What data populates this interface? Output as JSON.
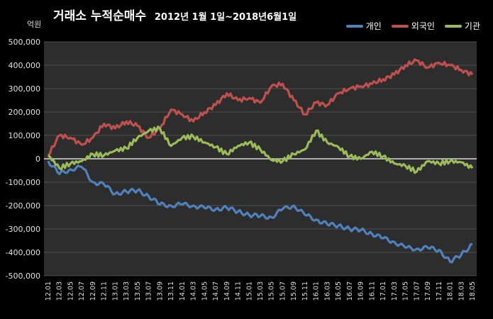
{
  "chart_data": {
    "type": "line",
    "title": "거래소 누적순매수",
    "subtitle": "2012년 1월 1일~2018년6월1일",
    "ylabel": "억원",
    "ylim": [
      -500000,
      500000
    ],
    "yticks": [
      500000,
      400000,
      300000,
      200000,
      100000,
      0,
      -100000,
      -200000,
      -300000,
      -400000,
      -500000
    ],
    "ytick_labels": [
      "500,000",
      "400,000",
      "300,000",
      "200,000",
      "100,000",
      "0",
      "-100,000",
      "-200,000",
      "-300,000",
      "-400,000",
      "-500,000"
    ],
    "x_tick_labels": [
      "12.01",
      "12.03",
      "12.05",
      "12.07",
      "12.09",
      "12.11",
      "13.01",
      "13.03",
      "13.05",
      "13.07",
      "13.09",
      "13.11",
      "14.01",
      "14.03",
      "14.05",
      "14.07",
      "14.09",
      "14.11",
      "15.01",
      "15.03",
      "15.05",
      "15.07",
      "15.09",
      "15.11",
      "16.01",
      "16.03",
      "16.05",
      "16.07",
      "16.09",
      "16.11",
      "17.01",
      "17.03",
      "17.05",
      "17.07",
      "17.09",
      "17.11",
      "18.01",
      "18.03",
      "18.05"
    ],
    "grid": true,
    "legend_position": "top-right",
    "x_dates": [
      "2012-01",
      "2012-03",
      "2012-05",
      "2012-07",
      "2012-09",
      "2012-11",
      "2013-01",
      "2013-03",
      "2013-05",
      "2013-07",
      "2013-09",
      "2013-11",
      "2014-01",
      "2014-03",
      "2014-05",
      "2014-07",
      "2014-09",
      "2014-11",
      "2015-01",
      "2015-03",
      "2015-05",
      "2015-07",
      "2015-09",
      "2015-11",
      "2016-01",
      "2016-03",
      "2016-05",
      "2016-07",
      "2016-09",
      "2016-11",
      "2017-01",
      "2017-03",
      "2017-05",
      "2017-07",
      "2017-09",
      "2017-11",
      "2018-01",
      "2018-03",
      "2018-05"
    ],
    "series": [
      {
        "name": "개인",
        "color": "#4f81bd",
        "values": [
          -10000,
          -65000,
          -45000,
          -35000,
          -100000,
          -110000,
          -150000,
          -140000,
          -135000,
          -160000,
          -195000,
          -200000,
          -195000,
          -200000,
          -210000,
          -215000,
          -210000,
          -225000,
          -240000,
          -245000,
          -250000,
          -215000,
          -200000,
          -240000,
          -260000,
          -280000,
          -285000,
          -300000,
          -305000,
          -320000,
          -340000,
          -355000,
          -380000,
          -385000,
          -380000,
          -390000,
          -440000,
          -410000,
          -365000
        ]
      },
      {
        "name": "외국인",
        "color": "#c0504d",
        "values": [
          15000,
          100000,
          90000,
          60000,
          90000,
          150000,
          130000,
          160000,
          140000,
          90000,
          130000,
          210000,
          190000,
          160000,
          200000,
          230000,
          280000,
          250000,
          260000,
          240000,
          310000,
          320000,
          250000,
          190000,
          240000,
          230000,
          280000,
          300000,
          310000,
          320000,
          340000,
          360000,
          400000,
          420000,
          390000,
          410000,
          400000,
          380000,
          360000
        ]
      },
      {
        "name": "기관",
        "color": "#9bbb59",
        "values": [
          15000,
          -40000,
          -20000,
          -10000,
          20000,
          15000,
          35000,
          45000,
          90000,
          120000,
          130000,
          55000,
          90000,
          95000,
          70000,
          50000,
          20000,
          55000,
          70000,
          40000,
          -5000,
          -10000,
          20000,
          40000,
          120000,
          70000,
          50000,
          10000,
          0,
          30000,
          10000,
          -20000,
          -30000,
          -55000,
          -10000,
          -20000,
          -10000,
          -15000,
          -40000
        ]
      }
    ]
  }
}
